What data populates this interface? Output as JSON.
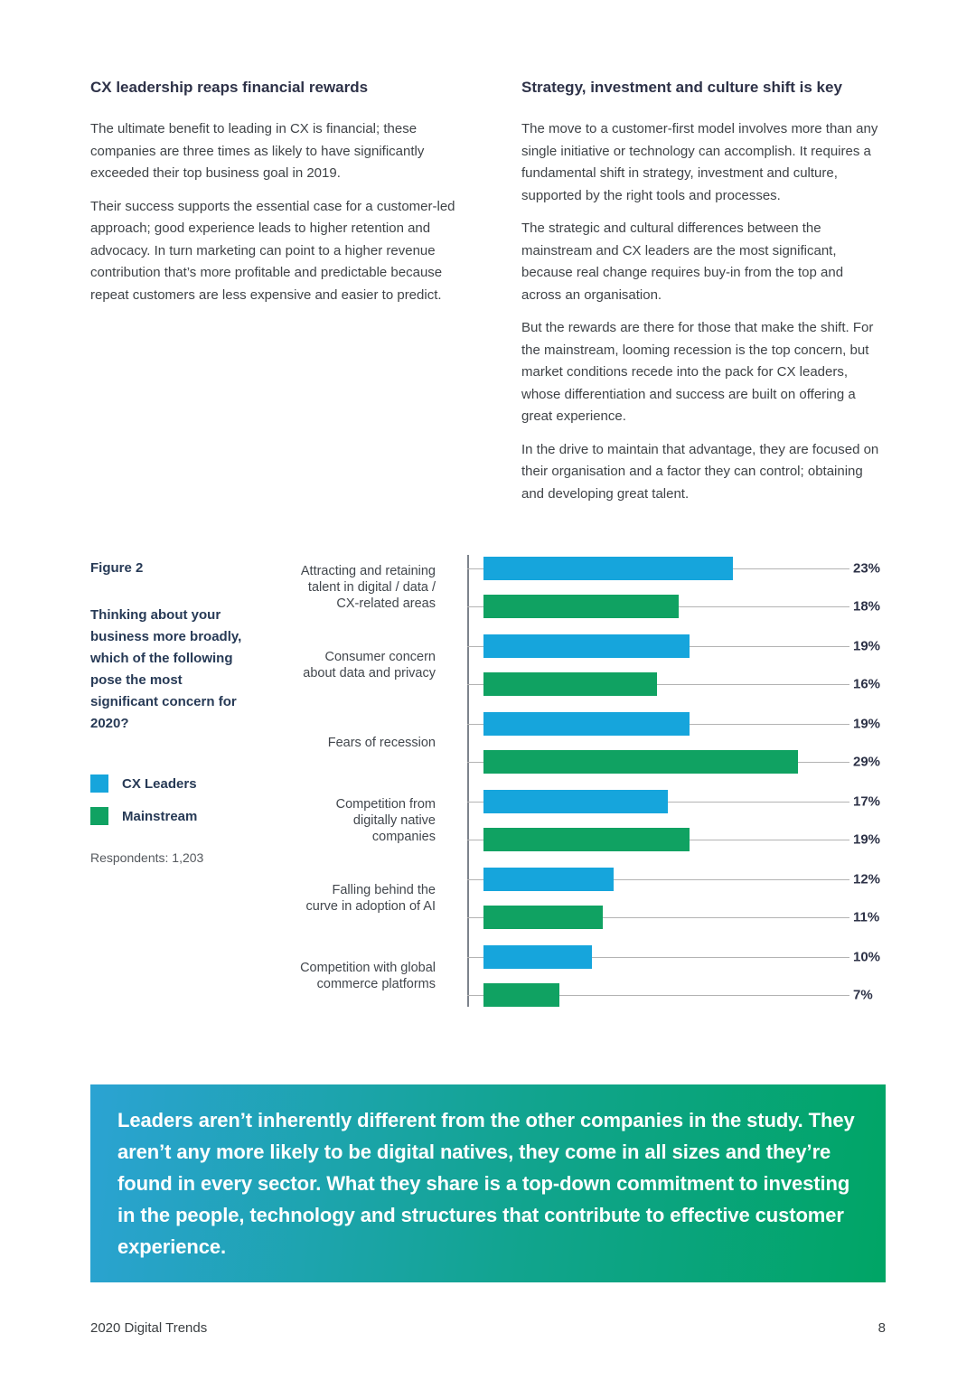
{
  "columns": {
    "left": {
      "heading": "CX leadership reaps financial rewards",
      "paragraphs": [
        "The ultimate benefit to leading in CX is financial; these companies are three times as likely to have significantly exceeded their top business goal in 2019.",
        "Their success supports the essential case for a customer-led approach; good experience leads to higher retention and advocacy. In turn marketing can point to a higher revenue contribution that’s more profitable and predictable because repeat customers are less expensive and easier to predict."
      ]
    },
    "right": {
      "heading": "Strategy, investment and culture shift is key",
      "paragraphs": [
        "The move to a customer-first model involves more than any single initiative or technology can accomplish. It requires a fundamental shift in strategy, investment and culture, supported by the right tools and processes.",
        "The strategic and cultural differences between the mainstream and CX leaders are the most significant, because real change requires buy-in from the top and across an organisation.",
        "But the rewards are there for those that make the shift. For the mainstream, looming recession is the top concern, but market conditions recede into the pack for CX leaders, whose differentiation and success are built on offering a great experience.",
        "In the drive to maintain that advantage, they are focused on their organisation and a factor they can control; obtaining and developing great talent."
      ]
    }
  },
  "figure": {
    "label": "Figure 2",
    "question": "Thinking about your business more broadly, which of the following pose the most significant concern for 2020?",
    "respondents": "Respondents: 1,203",
    "legend": [
      {
        "label": "CX Leaders",
        "color": "#16a5dc"
      },
      {
        "label": "Mainstream",
        "color": "#10a262"
      }
    ]
  },
  "chart_data": {
    "type": "bar",
    "orientation": "horizontal",
    "title": "Thinking about your business more broadly, which of the following pose the most significant concern for 2020?",
    "categories": [
      "Attracting and retaining talent in digital / data / CX-related areas",
      "Consumer concern about data and privacy",
      "Fears of recession",
      "Competition from digitally native companies",
      "Falling behind the curve in adoption of AI",
      "Competition with global commerce platforms"
    ],
    "series": [
      {
        "name": "CX Leaders",
        "color": "#16a5dc",
        "values": [
          23,
          19,
          19,
          17,
          12,
          10
        ]
      },
      {
        "name": "Mainstream",
        "color": "#10a262",
        "values": [
          18,
          16,
          29,
          19,
          11,
          7
        ]
      }
    ],
    "value_suffix": "%",
    "xlim": [
      0,
      35
    ],
    "grid": "per-bar horizontal leader lines",
    "legend_position": "left caption column",
    "respondents": 1203
  },
  "quote": {
    "text": "Leaders aren’t inherently different from the other companies in the study. They aren’t any more likely to be digital natives, they come in all sizes and they’re found in every sector. What they share is a top-down commitment to investing in the people, technology and structures that contribute to effective customer experience.",
    "gradient_start": "#2ba3d3",
    "gradient_end": "#00a565"
  },
  "footer": {
    "left": "2020 Digital Trends",
    "page_number": "8"
  }
}
